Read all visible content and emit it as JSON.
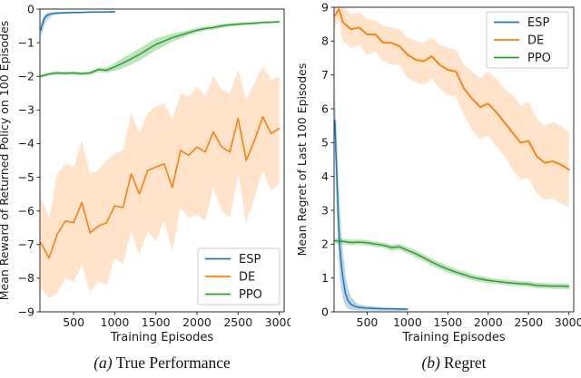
{
  "figure": {
    "background": "#ffffff",
    "captions": [
      {
        "index": "(a)",
        "title": "True Performance"
      },
      {
        "index": "(b)",
        "title": "Regret"
      }
    ]
  },
  "colors": {
    "esp_blue": "#1f77b4",
    "de_orange": "#ff7f0e",
    "ppo_green": "#2ca02c",
    "axis": "#2b2b2b",
    "text": "#1a1a1a",
    "legend_border": "#cccccc",
    "legend_bg": "#ffffff"
  },
  "chart_data": [
    {
      "id": "true-performance",
      "type": "line",
      "title": "",
      "xlabel": "Training Episodes",
      "ylabel": "Mean Reward of Returned Policy on 100 Episodes",
      "xlim": [
        90,
        3060
      ],
      "ylim": [
        -9,
        0
      ],
      "xticks": [
        500,
        1000,
        1500,
        2000,
        2500,
        3000
      ],
      "yticks": [
        0,
        -1,
        -2,
        -3,
        -4,
        -5,
        -6,
        -7,
        -8,
        -9
      ],
      "grid": false,
      "legend": {
        "position": "lower right",
        "entries": [
          "ESP",
          "DE",
          "PPO"
        ]
      },
      "series": [
        {
          "name": "DE",
          "color": "#ff7f0e",
          "width": 1.6,
          "band_opacity": 0.22,
          "x": [
            100,
            200,
            300,
            400,
            500,
            600,
            700,
            800,
            900,
            1000,
            1100,
            1200,
            1300,
            1400,
            1500,
            1600,
            1700,
            1800,
            1900,
            2000,
            2100,
            2200,
            2300,
            2400,
            2500,
            2600,
            2700,
            2800,
            2900,
            3000
          ],
          "y": [
            -6.95,
            -7.4,
            -6.7,
            -6.3,
            -6.35,
            -5.75,
            -6.65,
            -6.45,
            -6.35,
            -5.85,
            -5.9,
            -4.9,
            -5.5,
            -4.8,
            -4.7,
            -4.6,
            -5.3,
            -4.2,
            -4.35,
            -4.1,
            -4.25,
            -3.65,
            -4.1,
            -4.25,
            -3.25,
            -4.5,
            -3.9,
            -3.2,
            -3.7,
            -3.55
          ],
          "band_lower": [
            -8.3,
            -8.6,
            -8.45,
            -8.0,
            -8.1,
            -7.6,
            -8.4,
            -8.1,
            -8.2,
            -7.4,
            -7.6,
            -6.6,
            -7.3,
            -6.6,
            -6.9,
            -6.3,
            -7.2,
            -5.9,
            -6.2,
            -6.1,
            -6.3,
            -5.3,
            -6.0,
            -6.2,
            -4.9,
            -6.4,
            -5.6,
            -4.8,
            -5.4,
            -5.2
          ],
          "band_upper": [
            -5.6,
            -6.2,
            -4.9,
            -4.6,
            -4.7,
            -3.9,
            -4.9,
            -4.8,
            -4.5,
            -4.3,
            -4.2,
            -3.1,
            -3.7,
            -3.1,
            -2.9,
            -2.8,
            -3.3,
            -2.5,
            -2.6,
            -2.3,
            -2.6,
            -2.0,
            -2.4,
            -2.5,
            -1.8,
            -2.7,
            -2.2,
            -1.7,
            -2.1,
            -2.0
          ]
        },
        {
          "name": "PPO",
          "color": "#2ca02c",
          "width": 1.5,
          "band_opacity": 0.3,
          "x": [
            100,
            200,
            300,
            400,
            500,
            600,
            700,
            800,
            900,
            1000,
            1100,
            1200,
            1300,
            1400,
            1500,
            1600,
            1700,
            1800,
            1900,
            2000,
            2100,
            2200,
            2300,
            2400,
            2500,
            2600,
            2700,
            2800,
            2900,
            3000
          ],
          "y": [
            -2.0,
            -1.93,
            -1.9,
            -1.91,
            -1.9,
            -1.92,
            -1.9,
            -1.8,
            -1.82,
            -1.72,
            -1.6,
            -1.48,
            -1.35,
            -1.2,
            -1.05,
            -0.95,
            -0.85,
            -0.78,
            -0.7,
            -0.63,
            -0.58,
            -0.55,
            -0.5,
            -0.47,
            -0.45,
            -0.43,
            -0.42,
            -0.4,
            -0.39,
            -0.38
          ],
          "band_lower": [
            -2.05,
            -1.98,
            -1.95,
            -1.96,
            -1.95,
            -1.97,
            -1.95,
            -1.87,
            -1.9,
            -1.84,
            -1.75,
            -1.65,
            -1.53,
            -1.38,
            -1.23,
            -1.1,
            -0.97,
            -0.88,
            -0.78,
            -0.7,
            -0.64,
            -0.61,
            -0.56,
            -0.52,
            -0.5,
            -0.47,
            -0.46,
            -0.44,
            -0.42,
            -0.41
          ],
          "band_upper": [
            -1.95,
            -1.88,
            -1.85,
            -1.86,
            -1.85,
            -1.87,
            -1.85,
            -1.73,
            -1.74,
            -1.6,
            -1.45,
            -1.31,
            -1.17,
            -1.02,
            -0.87,
            -0.8,
            -0.73,
            -0.68,
            -0.62,
            -0.56,
            -0.52,
            -0.49,
            -0.44,
            -0.42,
            -0.4,
            -0.39,
            -0.38,
            -0.36,
            -0.36,
            -0.35
          ]
        },
        {
          "name": "ESP",
          "color": "#1f77b4",
          "width": 1.5,
          "band_opacity": 0.3,
          "x": [
            100,
            120,
            140,
            170,
            200,
            250,
            300,
            400,
            500,
            600,
            700,
            800,
            900,
            1000
          ],
          "y": [
            -0.62,
            -0.45,
            -0.3,
            -0.2,
            -0.16,
            -0.13,
            -0.12,
            -0.11,
            -0.1,
            -0.1,
            -0.09,
            -0.09,
            -0.09,
            -0.08
          ],
          "band_lower": [
            -0.85,
            -0.68,
            -0.5,
            -0.35,
            -0.26,
            -0.19,
            -0.16,
            -0.14,
            -0.13,
            -0.12,
            -0.12,
            -0.11,
            -0.11,
            -0.1
          ],
          "band_upper": [
            -0.42,
            -0.28,
            -0.18,
            -0.12,
            -0.1,
            -0.09,
            -0.08,
            -0.08,
            -0.07,
            -0.07,
            -0.07,
            -0.07,
            -0.06,
            -0.06
          ]
        }
      ]
    },
    {
      "id": "regret",
      "type": "line",
      "title": "",
      "xlabel": "Training Episodes",
      "ylabel": "Mean Regret of Last 100 Episodes",
      "xlim": [
        90,
        3060
      ],
      "ylim": [
        0,
        9
      ],
      "xticks": [
        500,
        1000,
        1500,
        2000,
        2500,
        3000
      ],
      "yticks": [
        0,
        1,
        2,
        3,
        4,
        5,
        6,
        7,
        8,
        9
      ],
      "grid": false,
      "legend": {
        "position": "upper right",
        "entries": [
          "ESP",
          "DE",
          "PPO"
        ]
      },
      "series": [
        {
          "name": "DE",
          "color": "#ff7f0e",
          "width": 1.9,
          "band_opacity": 0.22,
          "x": [
            100,
            150,
            200,
            300,
            400,
            500,
            600,
            700,
            800,
            900,
            1000,
            1100,
            1200,
            1300,
            1400,
            1500,
            1600,
            1700,
            1800,
            1900,
            2000,
            2100,
            2200,
            2300,
            2400,
            2500,
            2600,
            2700,
            2800,
            2900,
            3000
          ],
          "y": [
            8.75,
            8.95,
            8.55,
            8.35,
            8.4,
            8.2,
            8.2,
            7.95,
            7.95,
            7.85,
            7.6,
            7.45,
            7.4,
            7.55,
            7.3,
            7.15,
            7.1,
            6.6,
            6.3,
            6.05,
            6.15,
            5.9,
            5.6,
            5.3,
            5.0,
            5.05,
            4.6,
            4.4,
            4.45,
            4.35,
            4.2
          ],
          "band_lower": [
            8.4,
            8.6,
            8.0,
            7.8,
            7.9,
            7.6,
            7.7,
            7.4,
            7.3,
            7.3,
            6.9,
            6.8,
            6.7,
            6.9,
            6.6,
            6.4,
            6.35,
            5.8,
            5.4,
            5.1,
            5.2,
            4.9,
            4.6,
            4.2,
            3.9,
            3.95,
            3.5,
            3.3,
            3.35,
            3.2,
            3.1
          ],
          "band_upper": [
            9.0,
            9.0,
            9.0,
            8.8,
            8.85,
            8.65,
            8.6,
            8.45,
            8.4,
            8.35,
            8.1,
            8.0,
            7.95,
            8.1,
            7.9,
            7.8,
            7.75,
            7.3,
            7.1,
            6.9,
            7.1,
            6.9,
            6.6,
            6.4,
            6.1,
            6.2,
            5.7,
            5.5,
            5.6,
            5.5,
            5.3
          ]
        },
        {
          "name": "PPO",
          "color": "#2ca02c",
          "width": 1.5,
          "band_opacity": 0.3,
          "x": [
            100,
            200,
            300,
            400,
            500,
            600,
            700,
            800,
            900,
            1000,
            1100,
            1200,
            1300,
            1400,
            1500,
            1600,
            1700,
            1800,
            1900,
            2000,
            2100,
            2200,
            2300,
            2400,
            2500,
            2600,
            2700,
            2800,
            2900,
            3000
          ],
          "y": [
            2.1,
            2.08,
            2.05,
            2.06,
            2.04,
            2.0,
            1.97,
            1.9,
            1.92,
            1.82,
            1.72,
            1.6,
            1.47,
            1.36,
            1.26,
            1.17,
            1.1,
            1.02,
            0.97,
            0.93,
            0.9,
            0.87,
            0.85,
            0.83,
            0.82,
            0.78,
            0.77,
            0.76,
            0.76,
            0.75
          ],
          "band_lower": [
            2.02,
            2.0,
            1.97,
            1.98,
            1.96,
            1.92,
            1.89,
            1.81,
            1.83,
            1.72,
            1.62,
            1.5,
            1.37,
            1.26,
            1.16,
            1.07,
            1.0,
            0.93,
            0.88,
            0.84,
            0.82,
            0.79,
            0.77,
            0.75,
            0.74,
            0.7,
            0.69,
            0.68,
            0.68,
            0.67
          ],
          "band_upper": [
            2.18,
            2.16,
            2.13,
            2.14,
            2.12,
            2.08,
            2.05,
            1.99,
            2.01,
            1.92,
            1.82,
            1.7,
            1.57,
            1.46,
            1.36,
            1.27,
            1.2,
            1.11,
            1.06,
            1.02,
            0.98,
            0.95,
            0.93,
            0.91,
            0.9,
            0.86,
            0.85,
            0.84,
            0.84,
            0.83
          ]
        },
        {
          "name": "ESP",
          "color": "#1f77b4",
          "width": 1.5,
          "band_opacity": 0.3,
          "x": [
            100,
            115,
            130,
            145,
            160,
            180,
            200,
            230,
            260,
            300,
            350,
            400,
            500,
            600,
            700,
            800,
            900,
            1000
          ],
          "y": [
            5.65,
            4.6,
            3.6,
            2.6,
            1.95,
            1.4,
            1.0,
            0.55,
            0.35,
            0.22,
            0.16,
            0.13,
            0.11,
            0.1,
            0.09,
            0.09,
            0.08,
            0.08
          ],
          "band_lower": [
            4.75,
            3.5,
            2.5,
            1.6,
            1.05,
            0.65,
            0.4,
            0.18,
            0.1,
            0.06,
            0.05,
            0.04,
            0.04,
            0.03,
            0.03,
            0.03,
            0.03,
            0.03
          ],
          "band_upper": [
            6.55,
            5.7,
            4.8,
            3.9,
            3.1,
            2.4,
            1.8,
            1.1,
            0.7,
            0.45,
            0.3,
            0.22,
            0.17,
            0.15,
            0.13,
            0.12,
            0.12,
            0.11
          ]
        }
      ]
    }
  ]
}
